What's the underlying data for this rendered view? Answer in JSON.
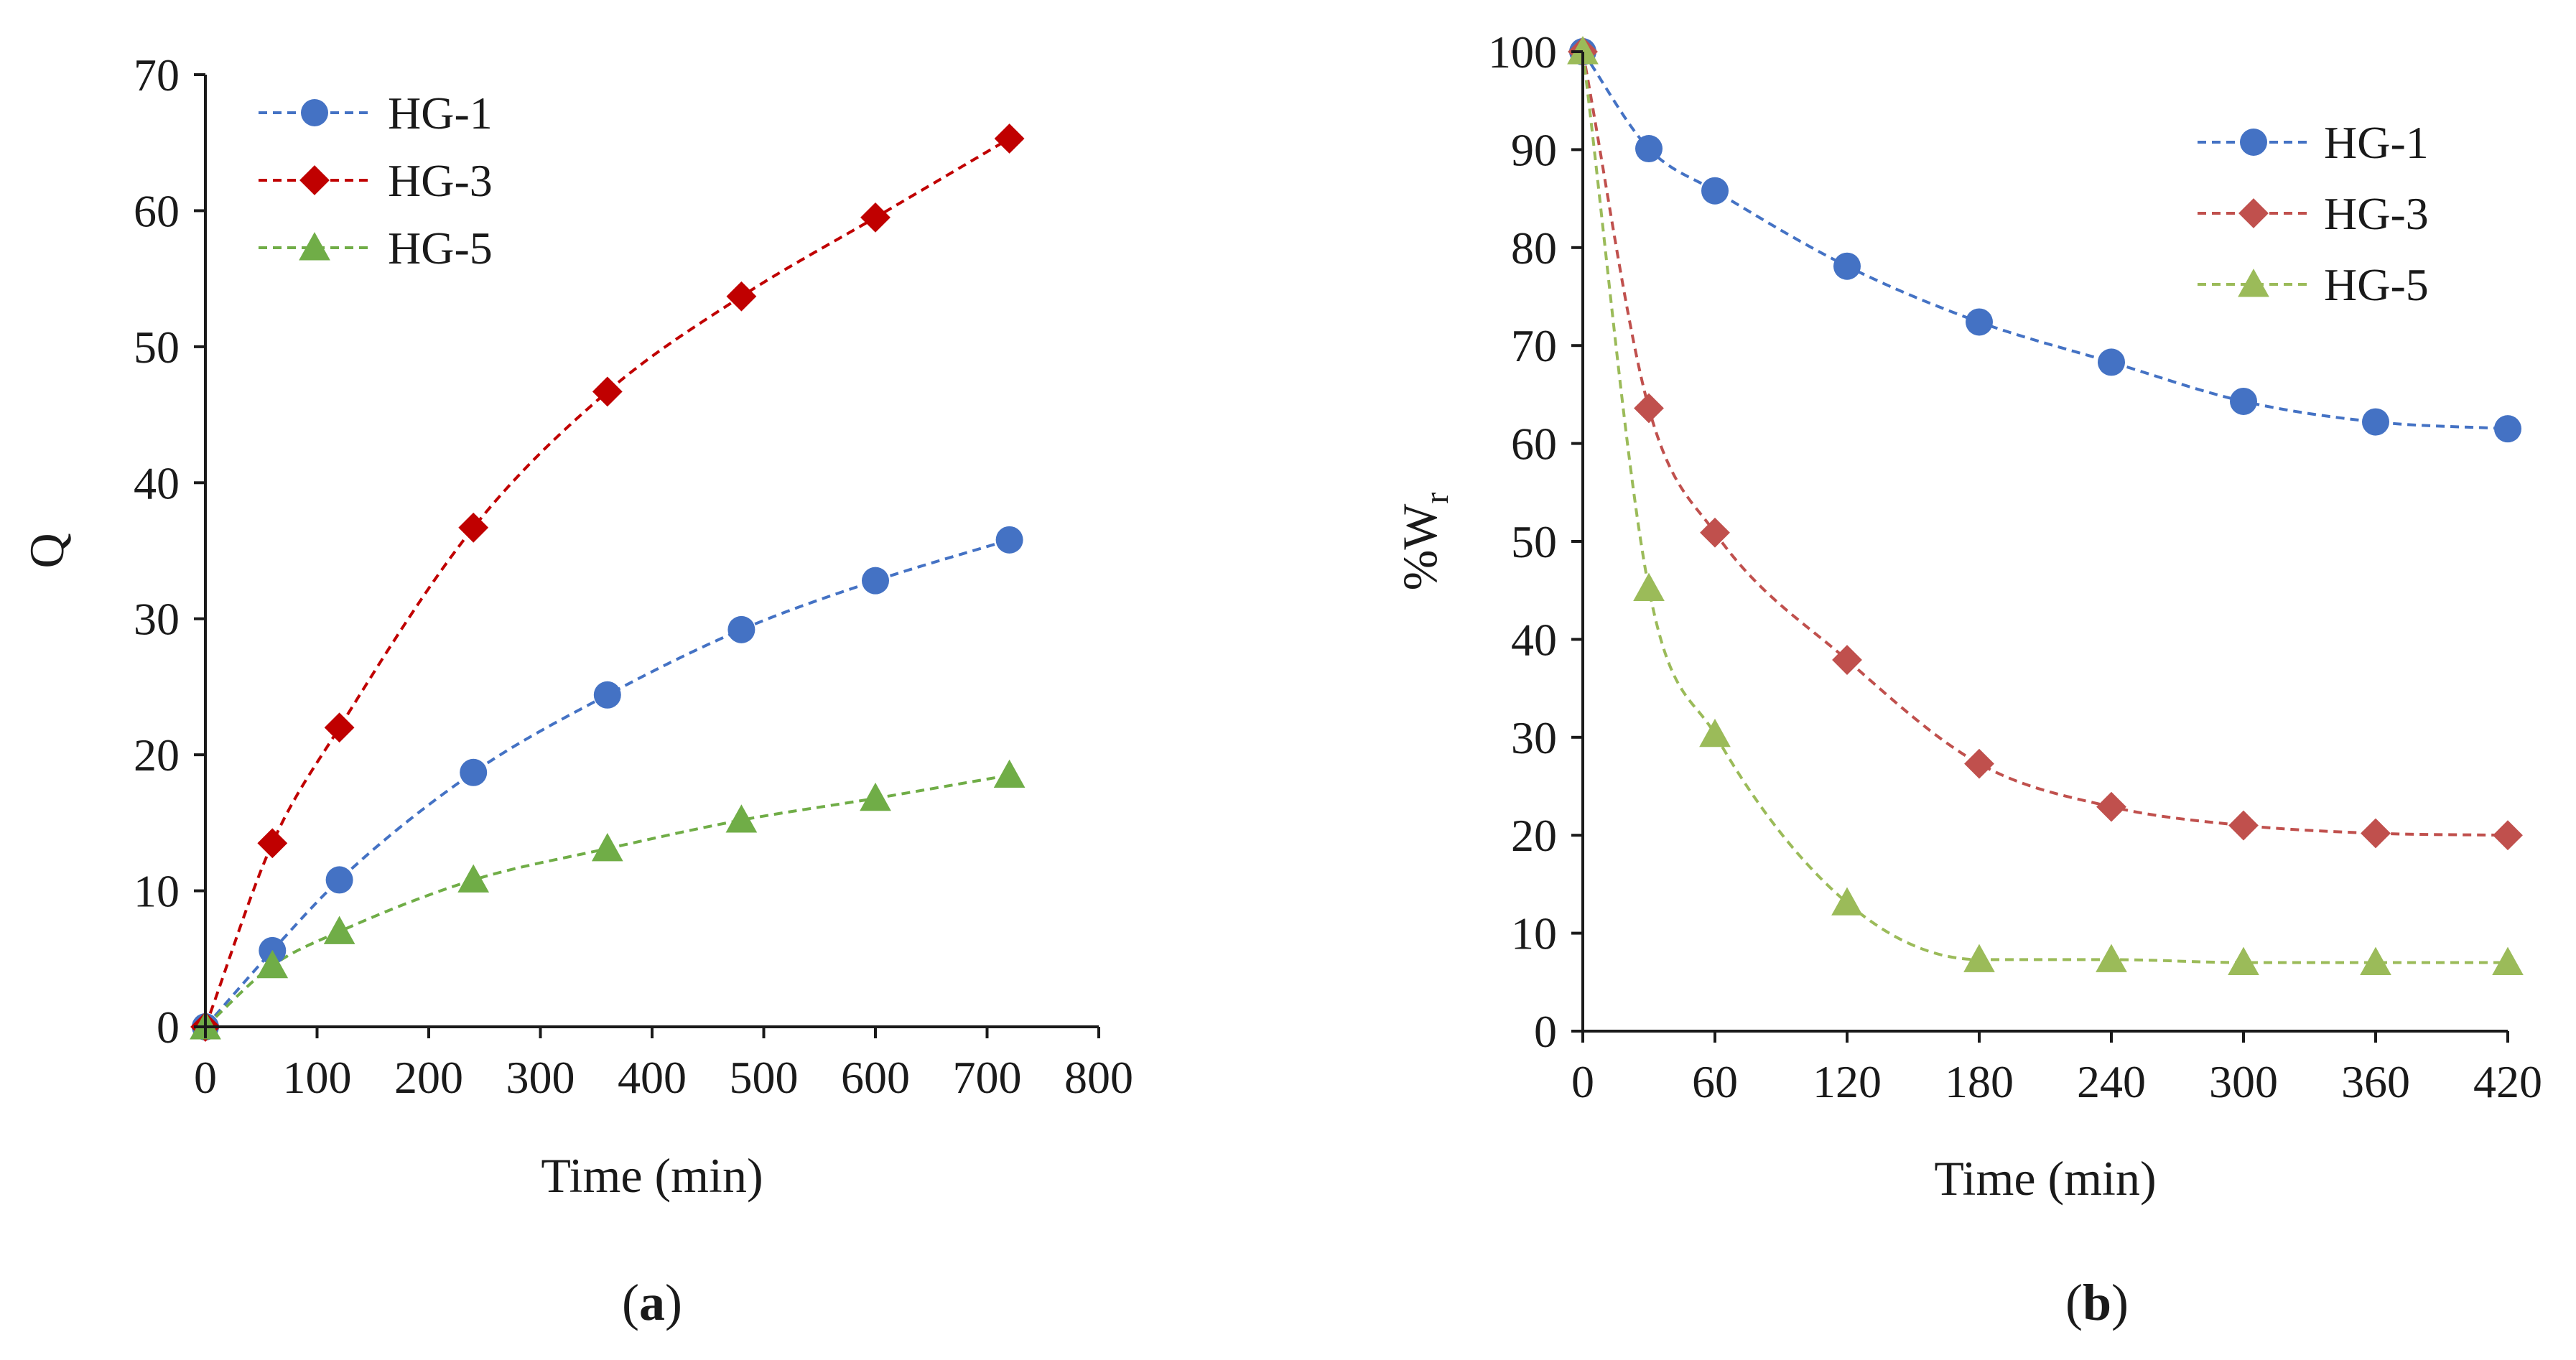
{
  "chart_data": [
    {
      "panel": "(a)",
      "panel_label_prefix": "(",
      "panel_label_letter": "a",
      "panel_label_suffix": ")",
      "type": "line",
      "xlabel": "Time (min)",
      "ylabel": "Q",
      "xlim": [
        0,
        800
      ],
      "ylim": [
        0,
        70
      ],
      "xticks": [
        0,
        100,
        200,
        300,
        400,
        500,
        600,
        700,
        800
      ],
      "yticks": [
        0,
        10,
        20,
        30,
        40,
        50,
        60,
        70
      ],
      "legend": "top-left",
      "grid": false,
      "series": [
        {
          "name": "HG-1",
          "color": "#4472C4",
          "marker": "circle",
          "x": [
            0,
            60,
            120,
            240,
            360,
            480,
            600,
            720
          ],
          "y": [
            0,
            5.6,
            10.8,
            18.7,
            24.4,
            29.2,
            32.8,
            35.8
          ]
        },
        {
          "name": "HG-3",
          "color": "#C00000",
          "marker": "diamond",
          "x": [
            0,
            60,
            120,
            240,
            360,
            480,
            600,
            720
          ],
          "y": [
            0,
            13.5,
            22.0,
            36.7,
            46.7,
            53.7,
            59.5,
            65.3
          ]
        },
        {
          "name": "HG-5",
          "color": "#70AD47",
          "marker": "triangle",
          "x": [
            0,
            60,
            120,
            240,
            360,
            480,
            600,
            720
          ],
          "y": [
            0,
            4.5,
            7.0,
            10.8,
            13.1,
            15.2,
            16.8,
            18.5
          ]
        }
      ]
    },
    {
      "panel": "(b)",
      "panel_label_prefix": "(",
      "panel_label_letter": "b",
      "panel_label_suffix": ")",
      "type": "line",
      "xlabel": "Time (min)",
      "ylabel": "%W",
      "ylabel_subscript": "r",
      "xlim": [
        0,
        420
      ],
      "ylim": [
        0,
        100
      ],
      "xticks": [
        0,
        60,
        120,
        180,
        240,
        300,
        360,
        420
      ],
      "yticks": [
        0,
        10,
        20,
        30,
        40,
        50,
        60,
        70,
        80,
        90,
        100
      ],
      "legend": "top-right",
      "grid": false,
      "series": [
        {
          "name": "HG-1",
          "color": "#4472C4",
          "marker": "circle",
          "x": [
            0,
            30,
            60,
            120,
            180,
            240,
            300,
            360,
            420
          ],
          "y": [
            100,
            90.1,
            85.8,
            78.1,
            72.4,
            68.3,
            64.3,
            62.2,
            61.5
          ]
        },
        {
          "name": "HG-3",
          "color": "#C0504D",
          "marker": "diamond",
          "x": [
            0,
            30,
            60,
            120,
            180,
            240,
            300,
            360,
            420
          ],
          "y": [
            100,
            63.6,
            50.9,
            37.9,
            27.3,
            22.9,
            21.0,
            20.2,
            20.0
          ]
        },
        {
          "name": "HG-5",
          "color": "#9BBB59",
          "marker": "triangle",
          "x": [
            0,
            30,
            60,
            120,
            180,
            240,
            300,
            360,
            420
          ],
          "y": [
            100,
            45.2,
            30.3,
            13.1,
            7.3,
            7.3,
            7.0,
            7.0,
            7.0
          ]
        }
      ]
    }
  ]
}
